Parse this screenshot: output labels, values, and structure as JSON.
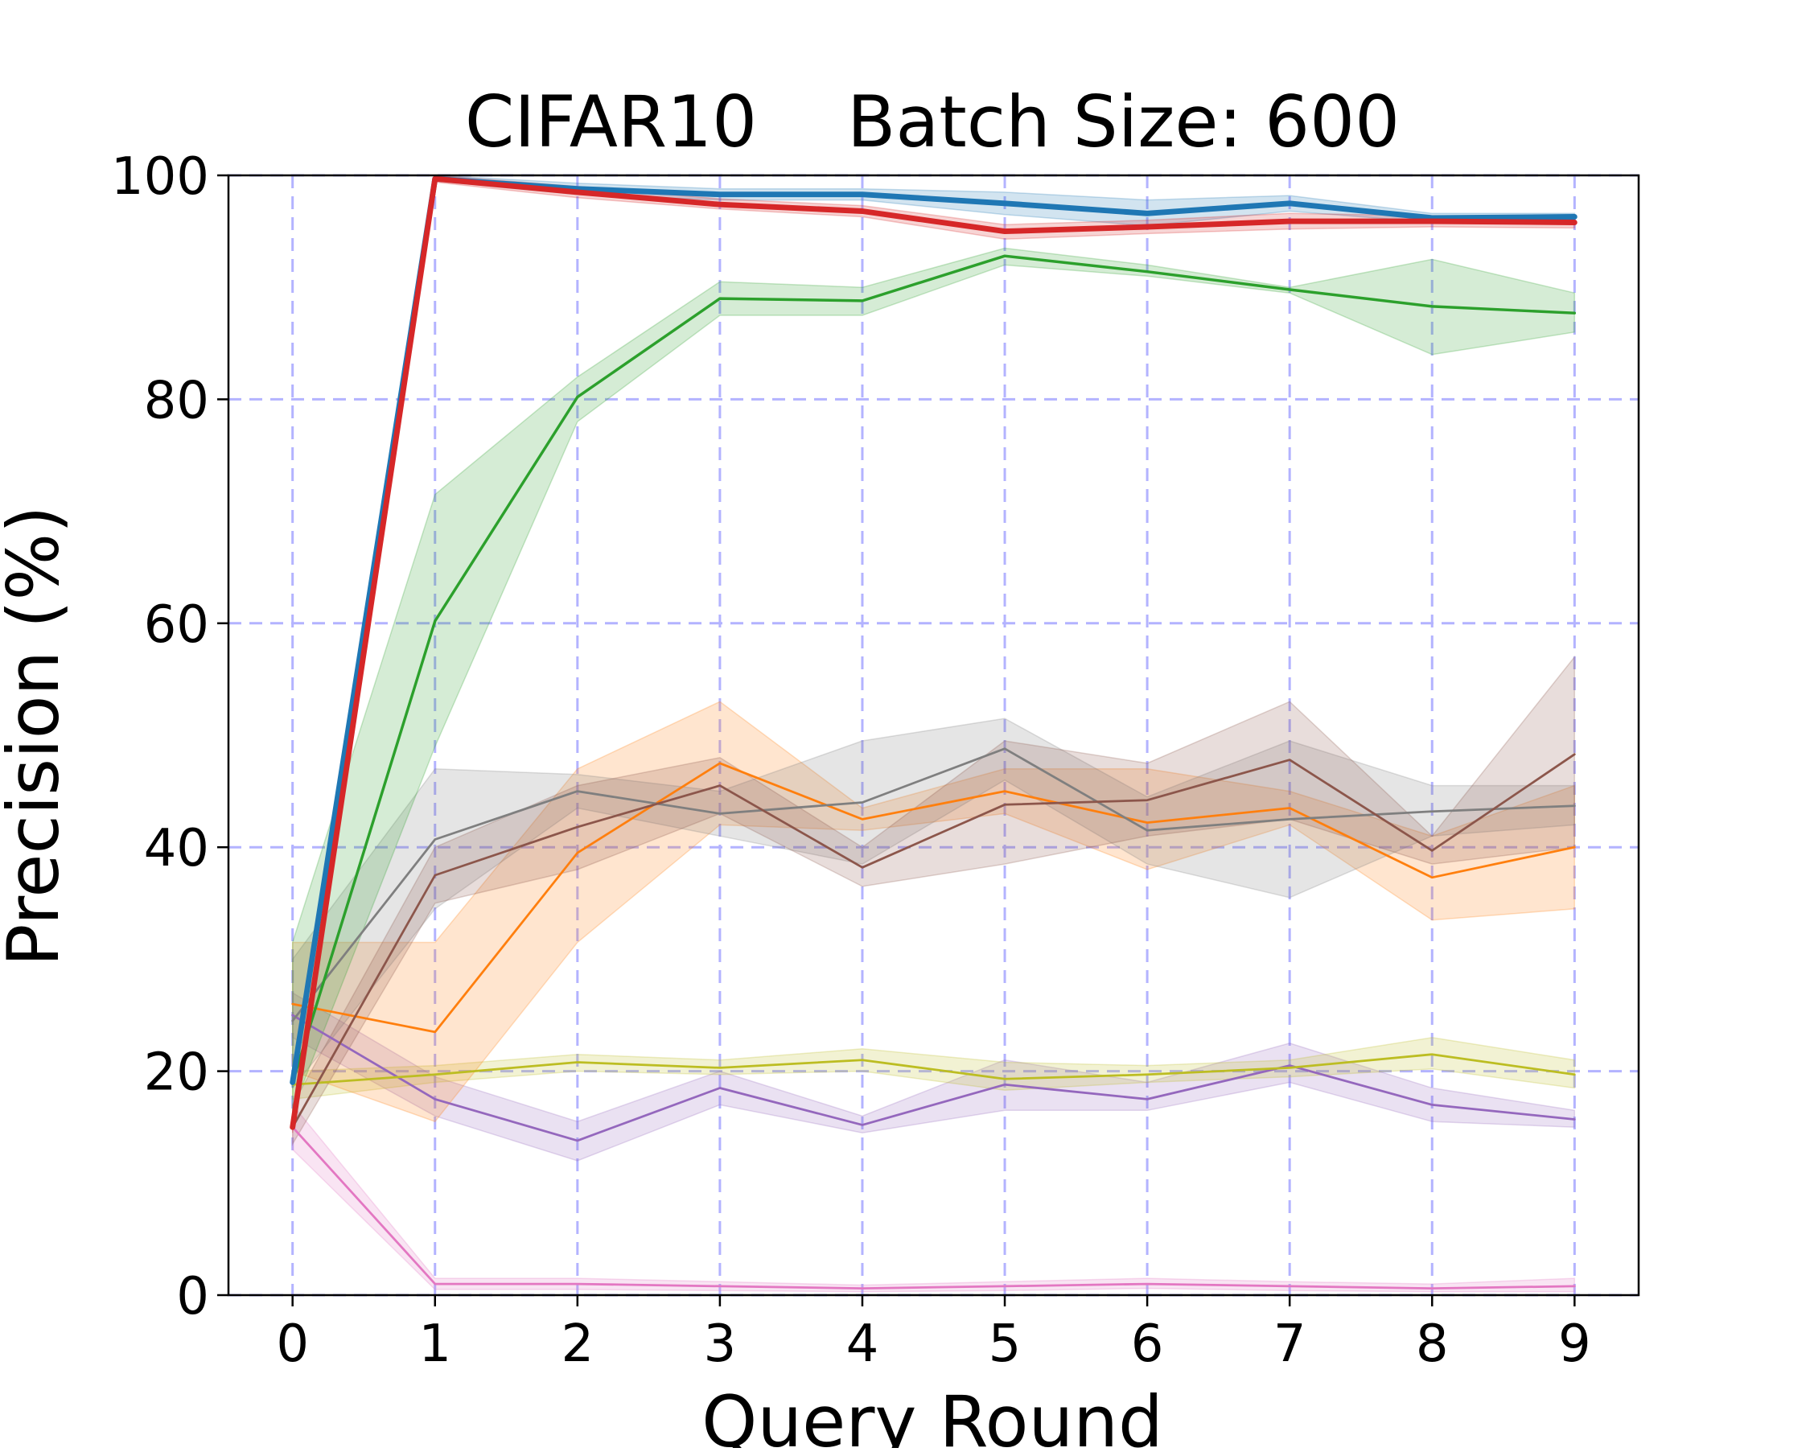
{
  "chart_data": {
    "type": "line",
    "title": "CIFAR10    Batch Size: 600",
    "xlabel": "Query Round",
    "ylabel": "Precision (%)",
    "x": [
      0,
      1,
      2,
      3,
      4,
      5,
      6,
      7,
      8,
      9
    ],
    "xlim": [
      -0.45,
      9.45
    ],
    "ylim": [
      0,
      100
    ],
    "x_ticks": [
      0,
      1,
      2,
      3,
      4,
      5,
      6,
      7,
      8,
      9
    ],
    "y_ticks": [
      0,
      20,
      40,
      60,
      80,
      100
    ],
    "grid": true,
    "grid_color": "#b3b3ff",
    "legend": "none",
    "series": [
      {
        "color": "#e377c2",
        "values": [
          15.0,
          1.0,
          1.0,
          0.8,
          0.6,
          0.8,
          1.0,
          0.8,
          0.6,
          0.8
        ],
        "band_low": [
          13.0,
          0.5,
          0.5,
          0.4,
          0.3,
          0.4,
          0.6,
          0.4,
          0.3,
          0.3
        ],
        "band_high": [
          17.0,
          1.5,
          1.5,
          1.2,
          0.9,
          1.2,
          1.5,
          1.2,
          1.0,
          1.5
        ],
        "width": 1.2
      },
      {
        "color": "#9467bd",
        "values": [
          25.0,
          17.5,
          13.8,
          18.5,
          15.2,
          18.8,
          17.5,
          20.5,
          17.0,
          15.7
        ],
        "band_low": [
          23.0,
          16.0,
          12.0,
          17.0,
          14.5,
          16.5,
          16.5,
          19.0,
          15.5,
          15.0
        ],
        "band_high": [
          27.0,
          19.5,
          15.5,
          20.0,
          16.0,
          21.0,
          19.0,
          22.5,
          18.5,
          16.5
        ],
        "width": 1.2
      },
      {
        "color": "#bcbd22",
        "values": [
          18.8,
          19.7,
          20.8,
          20.3,
          21.0,
          19.3,
          19.7,
          20.3,
          21.5,
          19.7
        ],
        "band_low": [
          17.5,
          19.0,
          20.0,
          19.7,
          20.0,
          18.3,
          19.0,
          19.5,
          20.2,
          18.5
        ],
        "band_high": [
          20.0,
          20.5,
          21.5,
          21.0,
          22.0,
          20.8,
          20.5,
          21.0,
          23.0,
          21.0
        ],
        "width": 1.2
      },
      {
        "color": "#ff7f0e",
        "values": [
          26.0,
          23.5,
          39.5,
          47.5,
          42.5,
          45.0,
          42.2,
          43.5,
          37.3,
          40.0
        ],
        "band_low": [
          20.0,
          15.5,
          31.5,
          42.0,
          41.5,
          43.0,
          38.0,
          42.0,
          33.5,
          34.5
        ],
        "band_high": [
          31.5,
          31.5,
          47.0,
          53.0,
          43.5,
          47.0,
          47.0,
          45.0,
          41.0,
          45.5
        ],
        "width": 1.2
      },
      {
        "color": "#7f7f7f",
        "values": [
          24.5,
          40.7,
          45.0,
          43.0,
          44.0,
          48.8,
          41.5,
          42.5,
          43.2,
          43.7
        ],
        "band_low": [
          18.5,
          34.5,
          43.5,
          41.0,
          38.5,
          46.0,
          38.5,
          35.5,
          41.0,
          42.0
        ],
        "band_high": [
          30.0,
          47.0,
          46.5,
          45.0,
          49.5,
          51.5,
          44.5,
          49.5,
          45.5,
          45.5
        ],
        "width": 1.2
      },
      {
        "color": "#8c564b",
        "values": [
          15.0,
          37.5,
          41.8,
          45.5,
          38.2,
          43.8,
          44.2,
          47.8,
          39.7,
          48.3
        ],
        "band_low": [
          13.5,
          35.0,
          38.0,
          43.0,
          36.5,
          38.5,
          41.0,
          42.5,
          38.5,
          40.0
        ],
        "band_high": [
          17.0,
          40.0,
          45.5,
          48.0,
          40.0,
          49.5,
          47.5,
          53.0,
          41.0,
          57.0
        ],
        "width": 1.2
      },
      {
        "color": "#2ca02c",
        "values": [
          19.0,
          60.2,
          80.2,
          89.0,
          88.8,
          92.8,
          91.4,
          89.8,
          88.3,
          87.7
        ],
        "band_low": [
          16.5,
          49.0,
          78.0,
          87.5,
          87.5,
          92.0,
          91.0,
          89.5,
          84.0,
          86.0
        ],
        "band_high": [
          31.5,
          71.5,
          82.0,
          90.5,
          90.0,
          93.5,
          92.0,
          90.0,
          92.5,
          89.5
        ],
        "width": 1.5
      },
      {
        "color": "#1f77b4",
        "values": [
          19.0,
          99.7,
          98.8,
          98.3,
          98.3,
          97.5,
          96.6,
          97.5,
          96.2,
          96.3
        ],
        "band_low": [
          18.5,
          99.5,
          98.3,
          97.8,
          97.8,
          96.5,
          95.5,
          96.8,
          95.8,
          96.0
        ],
        "band_high": [
          19.5,
          100.0,
          99.3,
          98.8,
          98.8,
          98.5,
          97.8,
          98.2,
          96.6,
          96.6
        ],
        "width": 3.0
      },
      {
        "color": "#d62728",
        "values": [
          15.0,
          99.7,
          98.5,
          97.4,
          96.8,
          95.0,
          95.4,
          95.9,
          95.9,
          95.8
        ],
        "band_low": [
          14.5,
          99.4,
          98.0,
          97.0,
          96.3,
          94.3,
          94.8,
          95.2,
          95.4,
          95.3
        ],
        "band_high": [
          15.5,
          100.0,
          99.0,
          97.9,
          97.3,
          95.6,
          96.0,
          96.6,
          96.4,
          96.3
        ],
        "width": 3.0
      }
    ]
  }
}
